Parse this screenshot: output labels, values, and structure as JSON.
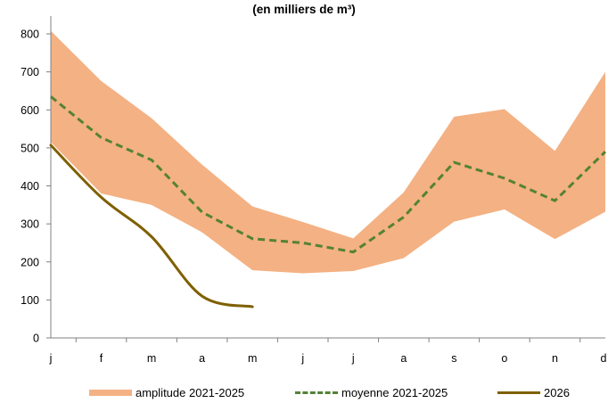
{
  "colors": {
    "band": "#F4B183",
    "mean": "#548235",
    "line2026": "#7F6000",
    "axis": "#808080"
  },
  "chart_data": {
    "type": "line",
    "title": "(en milliers de m³)",
    "xlabel": "",
    "ylabel": "",
    "categories": [
      "j",
      "f",
      "m",
      "a",
      "m",
      "j",
      "j",
      "a",
      "s",
      "o",
      "n",
      "d"
    ],
    "ylim": [
      0,
      800
    ],
    "yticks": [
      0,
      100,
      200,
      300,
      400,
      500,
      600,
      700,
      800
    ],
    "grid": false,
    "legend": "bottom",
    "series": [
      {
        "name": "amplitude 2021-2025",
        "kind": "band",
        "low": [
          515,
          380,
          350,
          278,
          178,
          170,
          176,
          210,
          306,
          338,
          260,
          332
        ],
        "high": [
          808,
          676,
          578,
          456,
          346,
          305,
          262,
          383,
          582,
          602,
          492,
          700
        ]
      },
      {
        "name": "moyenne 2021-2025",
        "kind": "dashed",
        "values": [
          635,
          527,
          468,
          331,
          261,
          250,
          226,
          318,
          462,
          420,
          361,
          490
        ]
      },
      {
        "name": "2026",
        "kind": "solid",
        "values": [
          507,
          370,
          266,
          110,
          82,
          null,
          null,
          null,
          null,
          null,
          null,
          null
        ]
      }
    ]
  }
}
